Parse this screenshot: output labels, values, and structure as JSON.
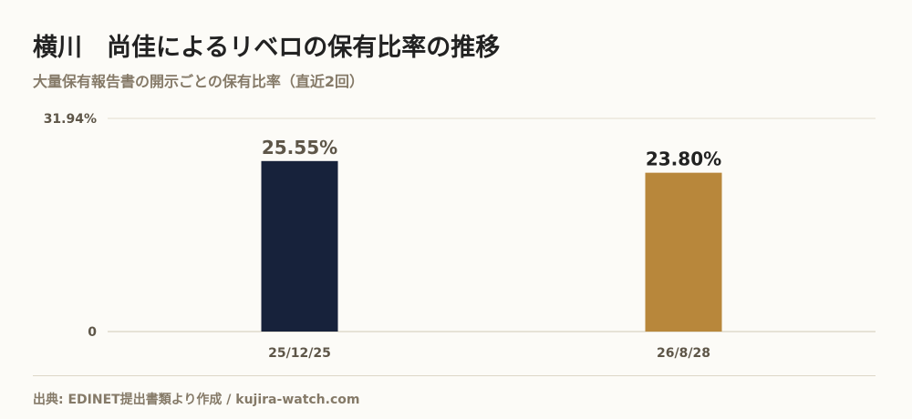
{
  "header": {
    "title": "横川　尚佳によるリベロの保有比率の推移",
    "subtitle": "大量保有報告書の開示ごとの保有比率（直近2回）"
  },
  "footer": {
    "source": "出典: EDINET提出書類より作成 / kujira-watch.com"
  },
  "chart_data": {
    "type": "bar",
    "title": "横川　尚佳によるリベロの保有比率の推移",
    "subtitle": "大量保有報告書の開示ごとの保有比率（直近2回）",
    "categories": [
      "25/12/25",
      "26/8/28"
    ],
    "values": [
      25.55,
      23.8
    ],
    "value_labels": [
      "25.55%",
      "23.80%"
    ],
    "bar_colors": [
      "#17223b",
      "#b8873b"
    ],
    "ylim": [
      0,
      31.94
    ],
    "yticks": [
      0,
      31.94
    ],
    "ytick_labels": [
      "0",
      "31.94%"
    ],
    "grid": true,
    "legend": "none",
    "xlabel": "",
    "ylabel": ""
  }
}
